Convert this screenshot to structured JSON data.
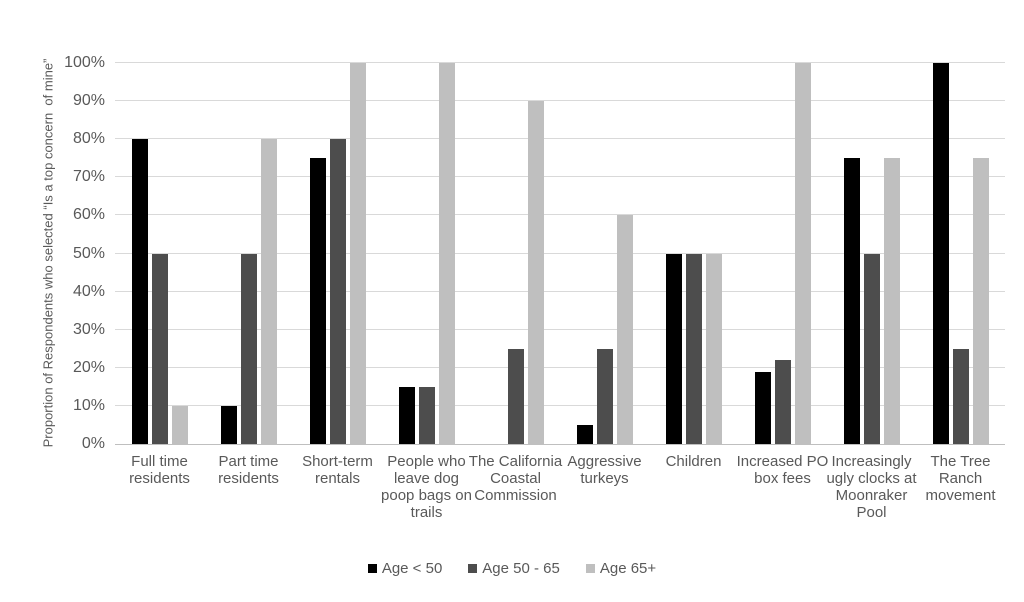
{
  "chart_data": {
    "type": "bar",
    "title": "",
    "xlabel": "",
    "ylabel": "Proportion of Respondents who selected “Is a top concern  of mine”",
    "ylim": [
      0,
      100
    ],
    "ytick_step": 10,
    "ytick_suffix": "%",
    "grid": true,
    "legend_position": "bottom-center",
    "categories": [
      "Full time residents",
      "Part time residents",
      "Short-term rentals",
      "People who leave dog poop bags on trails",
      "The California Coastal Commission",
      "Aggressive turkeys",
      "Children",
      "Increased PO box fees",
      "Increasingly ugly clocks at Moonraker Pool",
      "The Tree Ranch movement"
    ],
    "series": [
      {
        "name": "Age < 50",
        "color": "#000000",
        "values": [
          80,
          10,
          75,
          15,
          0,
          5,
          50,
          19,
          75,
          100
        ]
      },
      {
        "name": "Age 50 - 65",
        "color": "#4d4d4d",
        "values": [
          50,
          50,
          80,
          15,
          25,
          25,
          50,
          22,
          50,
          25
        ]
      },
      {
        "name": "Age 65+",
        "color": "#bfbfbf",
        "values": [
          10,
          80,
          100,
          100,
          90,
          60,
          50,
          100,
          75,
          75
        ]
      }
    ],
    "axis_text_color": "#595959",
    "gridline_color": "#d9d9d9",
    "axis_line_color": "#bfbfbf",
    "background_color": "#ffffff"
  }
}
